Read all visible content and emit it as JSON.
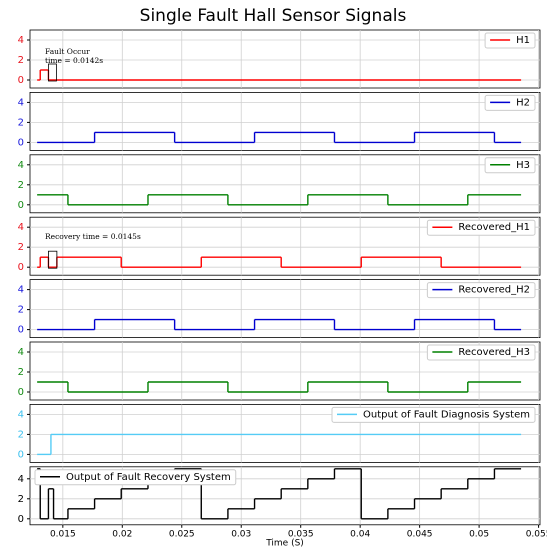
{
  "chart_data": [
    {
      "type": "step",
      "title": "Single Fault Hall Sensor Signals",
      "legend": "upper right",
      "grid": true,
      "xlim": [
        0.01224,
        0.05512
      ],
      "xticks": [
        0.015,
        0.02,
        0.025,
        0.03,
        0.035,
        0.04,
        0.045,
        0.05,
        0.055
      ],
      "ylim": [
        -0.8,
        5
      ],
      "yticks": [
        0,
        2,
        4
      ],
      "tick_color": "#e8141e",
      "annotation": [
        "Fault Occur",
        "time = 0.0142s"
      ],
      "x": [
        0.01284,
        0.0131,
        0.01379,
        0.05353
      ],
      "series": [
        {
          "name": "H1",
          "color": "#ff0000",
          "values": [
            0,
            1,
            0,
            0
          ]
        }
      ]
    },
    {
      "type": "step",
      "legend": "upper right",
      "grid": true,
      "xlim": [
        0.01224,
        0.05512
      ],
      "xticks": [
        0.015,
        0.02,
        0.025,
        0.03,
        0.035,
        0.04,
        0.045,
        0.05,
        0.055
      ],
      "ylim": [
        -0.8,
        5
      ],
      "yticks": [
        0,
        2,
        4
      ],
      "tick_color": "#1a1adc",
      "x": [
        0.01284,
        0.01767,
        0.0244,
        0.03112,
        0.03784,
        0.04457,
        0.05129,
        0.05353
      ],
      "series": [
        {
          "name": "H2",
          "color": "#0000d0",
          "values": [
            0,
            1,
            0,
            1,
            0,
            1,
            0,
            0
          ]
        }
      ]
    },
    {
      "type": "step",
      "legend": "upper right",
      "grid": true,
      "xlim": [
        0.01224,
        0.05512
      ],
      "xticks": [
        0.015,
        0.02,
        0.025,
        0.03,
        0.035,
        0.04,
        0.045,
        0.05,
        0.055
      ],
      "ylim": [
        -0.8,
        5
      ],
      "yticks": [
        0,
        2,
        4
      ],
      "tick_color": "#138a13",
      "x": [
        0.01284,
        0.01543,
        0.02216,
        0.02888,
        0.0356,
        0.04233,
        0.04905,
        0.05353
      ],
      "series": [
        {
          "name": "H3",
          "color": "#008000",
          "values": [
            1,
            0,
            1,
            0,
            1,
            0,
            1,
            1
          ]
        }
      ]
    },
    {
      "type": "step",
      "legend": "upper right",
      "grid": true,
      "xlim": [
        0.01224,
        0.05512
      ],
      "xticks": [
        0.015,
        0.02,
        0.025,
        0.03,
        0.035,
        0.04,
        0.045,
        0.05,
        0.055
      ],
      "ylim": [
        -0.8,
        5
      ],
      "yticks": [
        0,
        2,
        4
      ],
      "tick_color": "#e8141e",
      "annotation": [
        "Recovery time = 0.0145s"
      ],
      "x": [
        0.01284,
        0.0131,
        0.01379,
        0.0145,
        0.01991,
        0.02664,
        0.03336,
        0.04009,
        0.04681,
        0.05353
      ],
      "series": [
        {
          "name": "Recovered_H1",
          "color": "#ff0000",
          "values": [
            0,
            1,
            0,
            1,
            0,
            1,
            0,
            1,
            0,
            0
          ]
        }
      ]
    },
    {
      "type": "step",
      "legend": "upper right",
      "grid": true,
      "xlim": [
        0.01224,
        0.05512
      ],
      "xticks": [
        0.015,
        0.02,
        0.025,
        0.03,
        0.035,
        0.04,
        0.045,
        0.05,
        0.055
      ],
      "ylim": [
        -0.8,
        5
      ],
      "yticks": [
        0,
        2,
        4
      ],
      "tick_color": "#1a1adc",
      "x": [
        0.01284,
        0.01767,
        0.0244,
        0.03112,
        0.03784,
        0.04457,
        0.05129,
        0.05353
      ],
      "series": [
        {
          "name": "Recovered_H2",
          "color": "#0000d0",
          "values": [
            0,
            1,
            0,
            1,
            0,
            1,
            0,
            0
          ]
        }
      ]
    },
    {
      "type": "step",
      "legend": "upper right",
      "grid": true,
      "xlim": [
        0.01224,
        0.05512
      ],
      "xticks": [
        0.015,
        0.02,
        0.025,
        0.03,
        0.035,
        0.04,
        0.045,
        0.05,
        0.055
      ],
      "ylim": [
        -0.8,
        5
      ],
      "yticks": [
        0,
        2,
        4
      ],
      "tick_color": "#138a13",
      "x": [
        0.01284,
        0.01543,
        0.02216,
        0.02888,
        0.0356,
        0.04233,
        0.04905,
        0.05353
      ],
      "series": [
        {
          "name": "Recovered_H3",
          "color": "#008000",
          "values": [
            1,
            0,
            1,
            0,
            1,
            0,
            1,
            1
          ]
        }
      ]
    },
    {
      "type": "step",
      "legend": "upper right",
      "grid": true,
      "xlim": [
        0.01224,
        0.05512
      ],
      "xticks": [
        0.015,
        0.02,
        0.025,
        0.03,
        0.035,
        0.04,
        0.045,
        0.05,
        0.055
      ],
      "ylim": [
        -0.8,
        5
      ],
      "yticks": [
        0,
        2,
        4
      ],
      "tick_color": "#3cc0ee",
      "x": [
        0.01284,
        0.014,
        0.05353
      ],
      "series": [
        {
          "name": "Output of Fault Diagnosis System",
          "color": "#55ccf5",
          "values": [
            0,
            2,
            2
          ]
        }
      ]
    },
    {
      "type": "step",
      "legend": "upper left",
      "grid": true,
      "xlabel": "Time (S)",
      "xlim": [
        0.01224,
        0.05512
      ],
      "xticks": [
        0.015,
        0.02,
        0.025,
        0.03,
        0.035,
        0.04,
        0.045,
        0.05,
        0.055
      ],
      "ylim": [
        -0.6,
        5.2
      ],
      "yticks": [
        0,
        2,
        4
      ],
      "tick_color": "#000000",
      "x": [
        0.01284,
        0.0131,
        0.01379,
        0.01422,
        0.01543,
        0.01767,
        0.01991,
        0.02216,
        0.0244,
        0.02664,
        0.02888,
        0.03112,
        0.03336,
        0.0356,
        0.03784,
        0.04009,
        0.04233,
        0.04457,
        0.04681,
        0.04905,
        0.05129,
        0.05353
      ],
      "series": [
        {
          "name": "Output of Fault Recovery System",
          "color": "#000000",
          "values": [
            5,
            0,
            3,
            0,
            1,
            2,
            3,
            4,
            5,
            0,
            1,
            2,
            3,
            4,
            5,
            0,
            1,
            2,
            3,
            4,
            5,
            5
          ]
        }
      ]
    }
  ]
}
